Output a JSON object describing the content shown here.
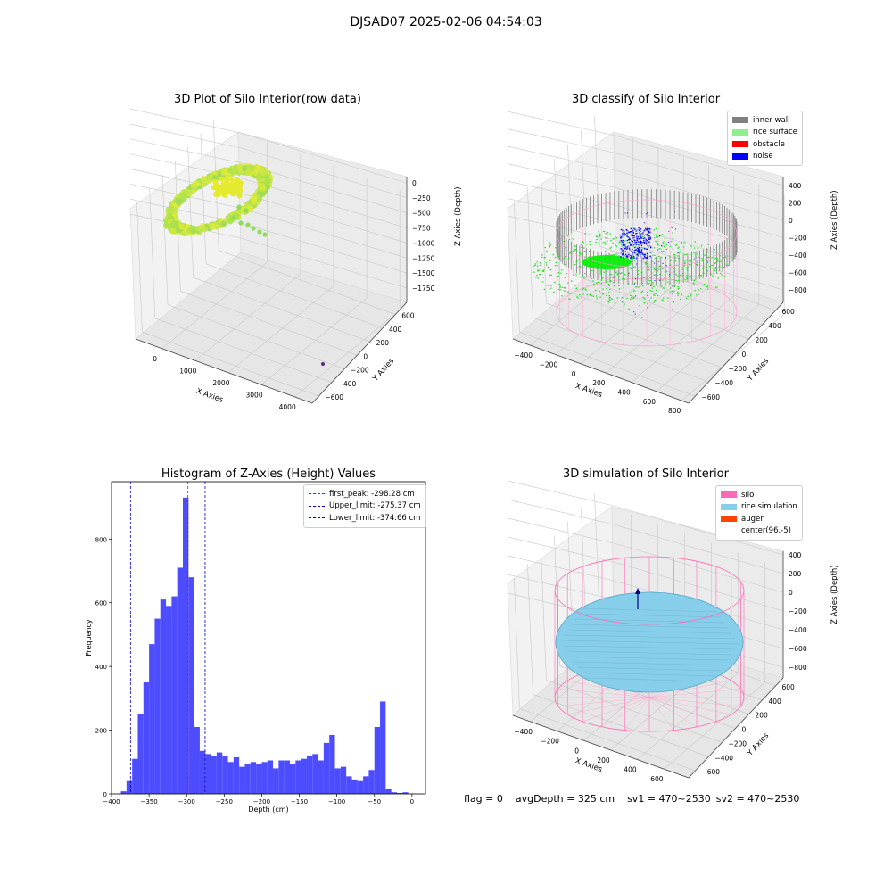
{
  "suptitle": "DJSAD07 2025-02-06 04:54:03",
  "footer": {
    "flag": "flag = 0",
    "avg_depth": "avgDepth = 325 cm",
    "sv1": "sv1 = 470~2530",
    "sv2": "sv2 = 470~2530"
  },
  "colors": {
    "inner_wall": "#808080",
    "rice_surface": "#90ee90",
    "obstacle": "#ff0000",
    "noise": "#0000ff",
    "silo": "#ff69b4",
    "rice_simulation": "#87ceeb",
    "auger": "#ff4500",
    "histogram": "#4d4dff"
  },
  "chart_data": [
    {
      "type": "scatter",
      "title": "3D Plot of Silo Interior(row data)",
      "xlabel": "X Axies",
      "ylabel": "Y Axies",
      "zlabel": "Z Axies (Depth)",
      "xticks": [
        "0",
        "1000",
        "2000",
        "3000",
        "4000"
      ],
      "yticks": [
        "600",
        "400",
        "200",
        "0",
        "−200",
        "−400",
        "−600"
      ],
      "zticks": [
        "0",
        "−250",
        "−500",
        "−750",
        "−1000",
        "−1250",
        "−1500",
        "−1750"
      ]
    },
    {
      "type": "scatter",
      "title": "3D classify of Silo Interior",
      "xlabel": "X Axies",
      "ylabel": "Y Axies",
      "zlabel": "Z Axies (Depth)",
      "xticks": [
        "−400",
        "−200",
        "0",
        "200",
        "400",
        "600",
        "800"
      ],
      "yticks": [
        "600",
        "400",
        "200",
        "0",
        "−200",
        "−400",
        "−600"
      ],
      "zticks": [
        "400",
        "200",
        "0",
        "−200",
        "−400",
        "−600",
        "−800"
      ],
      "legend": [
        "inner wall",
        "rice surface",
        "obstacle",
        "noise"
      ]
    },
    {
      "type": "bar",
      "title": "Histogram of Z-Axies (Height) Values",
      "xlabel": "Depth (cm)",
      "ylabel": "Frequency",
      "xlim": [
        -400,
        18
      ],
      "ylim": [
        0,
        980
      ],
      "xticks": [
        -400,
        -350,
        -300,
        -250,
        -200,
        -150,
        -100,
        -50,
        0
      ],
      "yticks": [
        0,
        200,
        400,
        600,
        800
      ],
      "bin_start": -395,
      "bin_width": 7.5,
      "values": [
        0,
        8,
        40,
        110,
        250,
        350,
        470,
        550,
        610,
        590,
        620,
        710,
        930,
        680,
        210,
        135,
        125,
        120,
        130,
        120,
        100,
        115,
        85,
        95,
        100,
        95,
        100,
        105,
        80,
        105,
        105,
        95,
        105,
        110,
        120,
        125,
        105,
        160,
        185,
        80,
        85,
        55,
        45,
        40,
        55,
        75,
        210,
        290,
        15,
        5,
        3,
        5,
        0
      ],
      "lines": [
        {
          "label": "first_peak: -298.28 cm",
          "x": -298.28,
          "color": "#ff0000"
        },
        {
          "label": "Upper_limit: -275.37 cm",
          "x": -275.37,
          "color": "#0000cd"
        },
        {
          "label": "Lower_limit: -374.66 cm",
          "x": -374.66,
          "color": "#0000cd"
        }
      ]
    },
    {
      "type": "scatter",
      "title": "3D simulation of Silo Interior",
      "xlabel": "X Axies",
      "ylabel": "Y Axies",
      "zlabel": "Z Axies (Depth)",
      "xticks": [
        "−400",
        "−200",
        "0",
        "200",
        "400",
        "600"
      ],
      "yticks": [
        "600",
        "400",
        "200",
        "0",
        "−200",
        "−400",
        "−600"
      ],
      "zticks": [
        "400",
        "200",
        "0",
        "−200",
        "−400",
        "−600",
        "−800"
      ],
      "legend": [
        "silo",
        "rice simulation",
        "auger",
        "center(96,-5)"
      ]
    }
  ]
}
